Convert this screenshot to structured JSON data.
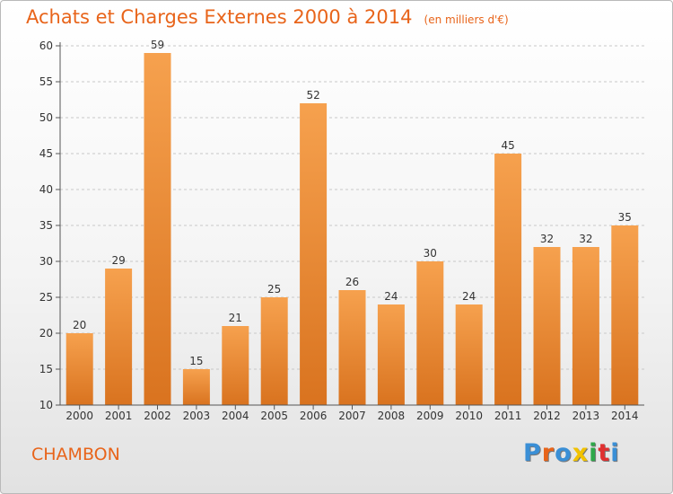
{
  "header": {
    "title": "Achats et Charges Externes 2000 à 2014",
    "unit": "(en milliers d'€)"
  },
  "footer": {
    "place": "CHAMBON",
    "brand": "Proxiti",
    "brand_colors": [
      "#3a8fd6",
      "#e8641a",
      "#3a8fd6",
      "#f2c200",
      "#2ea84a",
      "#e03030",
      "#3a8fd6"
    ]
  },
  "colors": {
    "accent": "#e8641a",
    "bar_top": "#f6a14e",
    "bar_bottom": "#d9731f"
  },
  "chart_data": {
    "type": "bar",
    "title": "Achats et Charges Externes 2000 à 2014",
    "subtitle": "(en milliers d'€)",
    "xlabel": "",
    "ylabel": "",
    "categories": [
      "2000",
      "2001",
      "2002",
      "2003",
      "2004",
      "2005",
      "2006",
      "2007",
      "2008",
      "2009",
      "2010",
      "2011",
      "2012",
      "2013",
      "2014"
    ],
    "values": [
      20,
      29,
      59,
      15,
      21,
      25,
      52,
      26,
      24,
      30,
      24,
      45,
      32,
      32,
      35
    ],
    "ylim": [
      10,
      60
    ],
    "yticks": [
      10,
      15,
      20,
      25,
      30,
      35,
      40,
      45,
      50,
      55,
      60
    ],
    "grid": "horizontal-dashed",
    "legend": "none",
    "data_labels": true
  }
}
